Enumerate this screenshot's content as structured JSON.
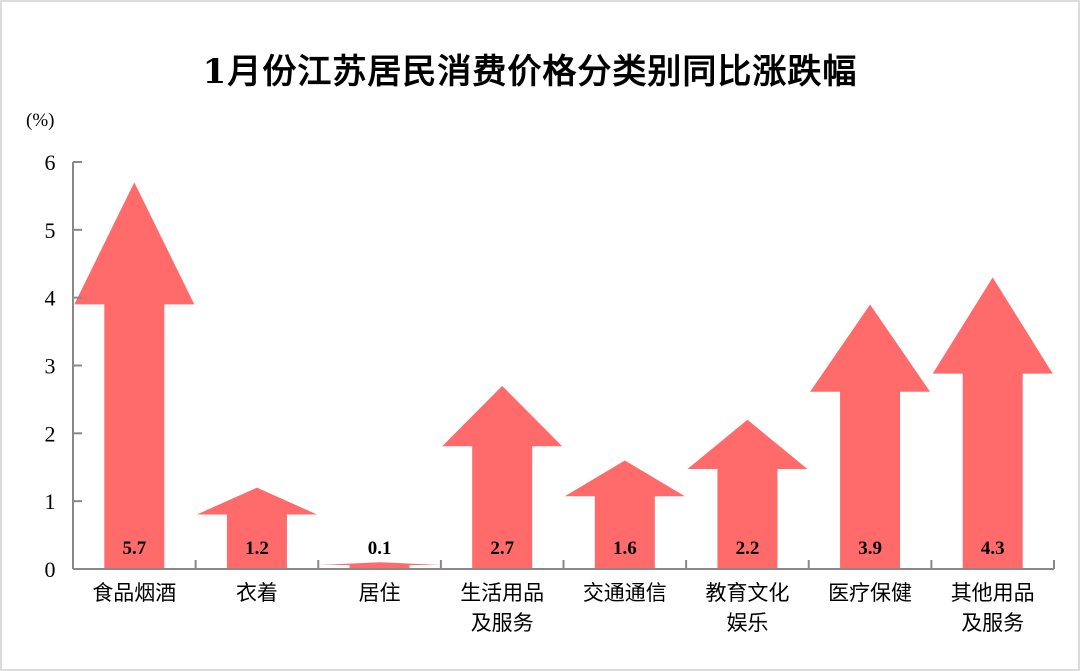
{
  "title": "1月份江苏居民消费价格分类别同比涨跌幅",
  "unit_label": "(%)",
  "colors": {
    "arrow": "#ff6b6b",
    "axis": "#888888",
    "text": "#000000",
    "border": "#dcdcdc"
  },
  "chart_data": {
    "type": "bar",
    "style": "up-arrow bars",
    "title": "1月份江苏居民消费价格分类别同比涨跌幅",
    "xlabel": "",
    "ylabel": "(%)",
    "ylim": [
      0,
      6
    ],
    "yticks": [
      0,
      1,
      2,
      3,
      4,
      5,
      6
    ],
    "grid": false,
    "legend": null,
    "categories": [
      "食品烟酒",
      "衣着",
      "居住",
      "生活用品及服务",
      "交通通信",
      "教育文化娱乐",
      "医疗保健",
      "其他用品及服务"
    ],
    "category_lines": [
      [
        "食品烟酒"
      ],
      [
        "衣着"
      ],
      [
        "居住"
      ],
      [
        "生活用品",
        "及服务"
      ],
      [
        "交通通信"
      ],
      [
        "教育文化",
        "娱乐"
      ],
      [
        "医疗保健"
      ],
      [
        "其他用品",
        "及服务"
      ]
    ],
    "values": [
      5.7,
      1.2,
      0.1,
      2.7,
      1.6,
      2.2,
      3.9,
      4.3
    ],
    "value_labels": [
      "5.7",
      "1.2",
      "0.1",
      "2.7",
      "1.6",
      "2.2",
      "3.9",
      "4.3"
    ]
  }
}
